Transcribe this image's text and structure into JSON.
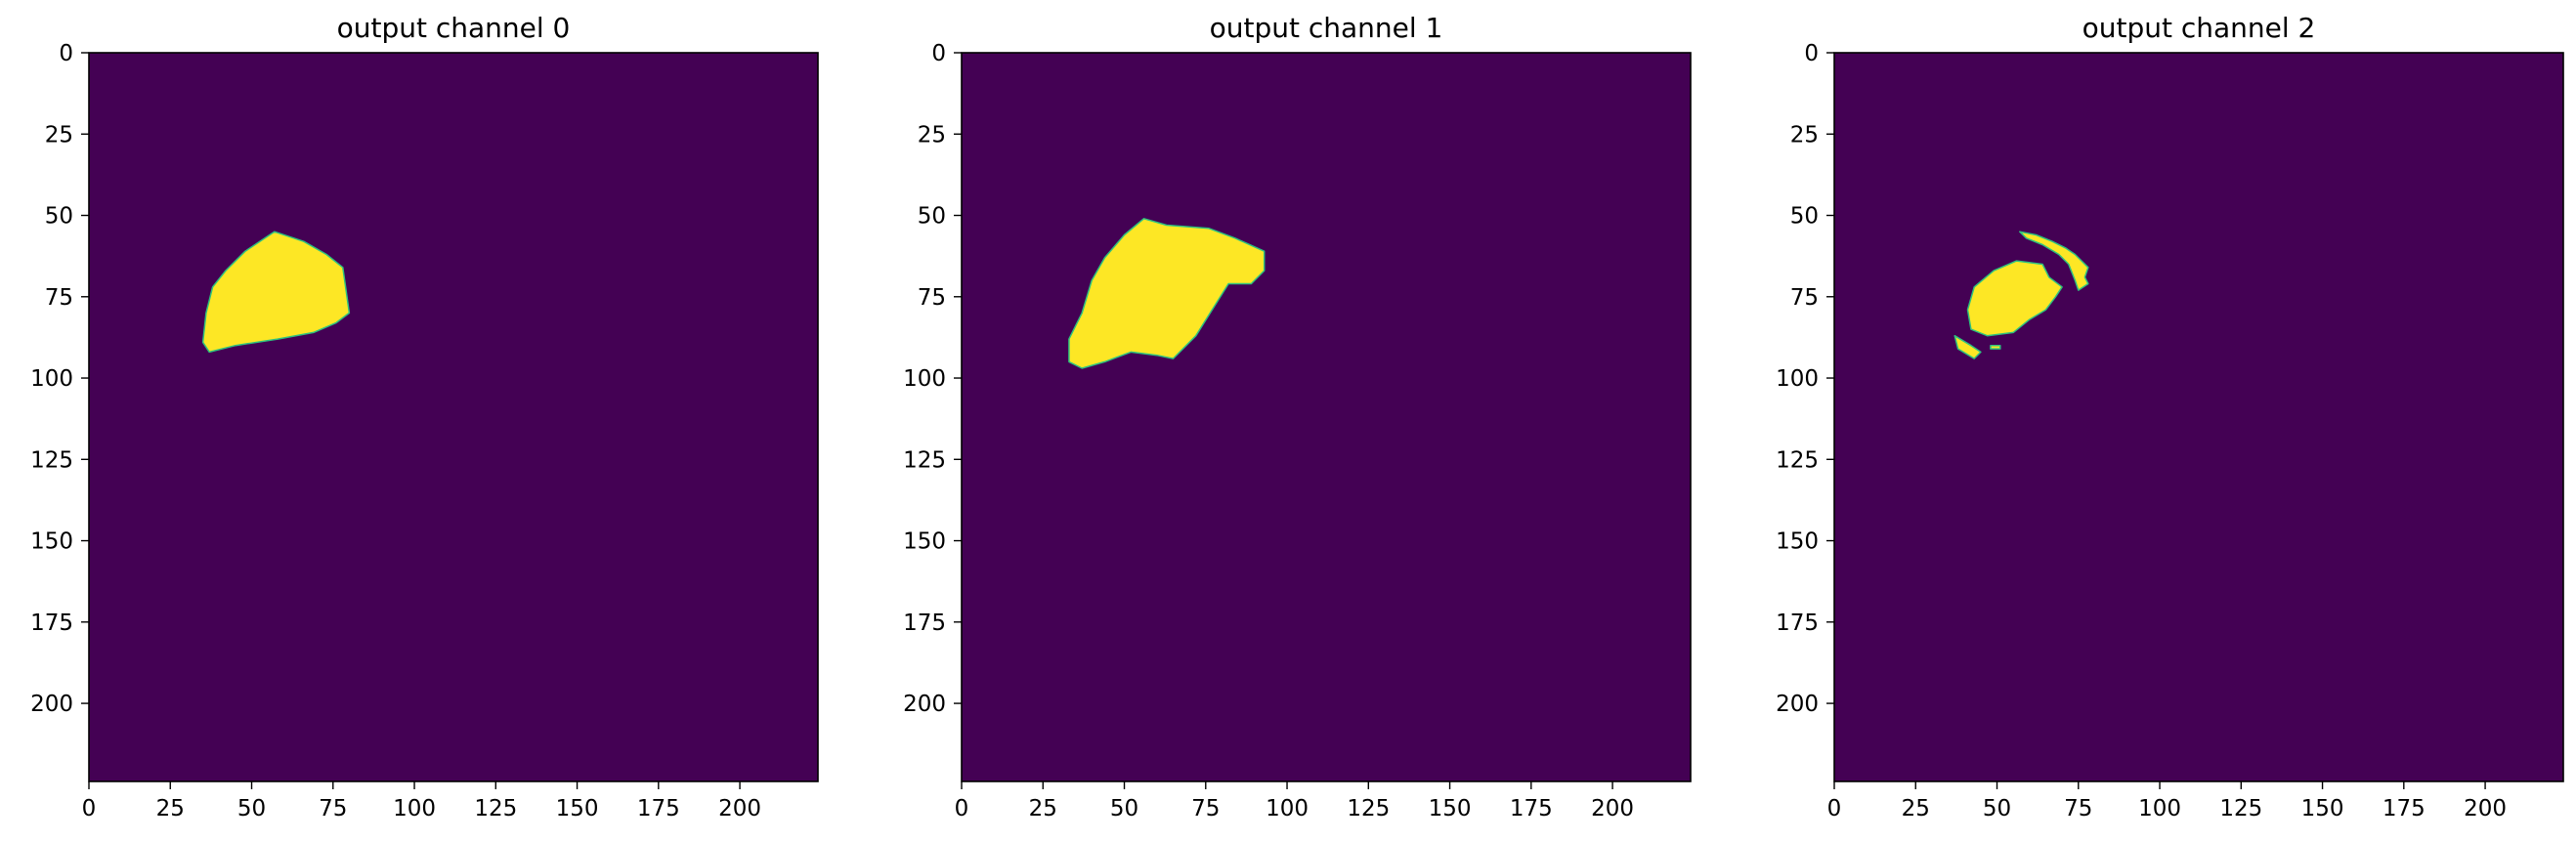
{
  "chart_data": [
    {
      "type": "heatmap",
      "title": "output channel 0",
      "xlabel": "",
      "ylabel": "",
      "xlim": [
        0,
        224
      ],
      "ylim": [
        224,
        0
      ],
      "xticks": [
        0,
        25,
        50,
        75,
        100,
        125,
        150,
        175,
        200
      ],
      "yticks": [
        0,
        25,
        50,
        75,
        100,
        125,
        150,
        175,
        200
      ],
      "grid": false,
      "colors": {
        "background": "#440154",
        "mask": "#fde725",
        "edge": "#2ec27e"
      },
      "values": {
        "background": 0,
        "mask": 1
      },
      "masks": [
        [
          [
            57,
            55
          ],
          [
            66,
            58
          ],
          [
            73,
            62
          ],
          [
            78,
            66
          ],
          [
            79,
            73
          ],
          [
            80,
            80
          ],
          [
            76,
            83
          ],
          [
            69,
            86
          ],
          [
            58,
            88
          ],
          [
            45,
            90
          ],
          [
            37,
            92
          ],
          [
            35,
            89
          ],
          [
            36,
            80
          ],
          [
            38,
            72
          ],
          [
            42,
            67
          ],
          [
            48,
            61
          ]
        ]
      ]
    },
    {
      "type": "heatmap",
      "title": "output channel 1",
      "xlabel": "",
      "ylabel": "",
      "xlim": [
        0,
        224
      ],
      "ylim": [
        224,
        0
      ],
      "xticks": [
        0,
        25,
        50,
        75,
        100,
        125,
        150,
        175,
        200
      ],
      "yticks": [
        0,
        25,
        50,
        75,
        100,
        125,
        150,
        175,
        200
      ],
      "grid": false,
      "colors": {
        "background": "#440154",
        "mask": "#fde725",
        "edge": "#2ec27e"
      },
      "values": {
        "background": 0,
        "mask": 1
      },
      "masks": [
        [
          [
            56,
            51
          ],
          [
            63,
            53
          ],
          [
            76,
            54
          ],
          [
            84,
            57
          ],
          [
            93,
            61
          ],
          [
            93,
            67
          ],
          [
            89,
            71
          ],
          [
            86,
            71
          ],
          [
            82,
            71
          ],
          [
            77,
            79
          ],
          [
            72,
            87
          ],
          [
            65,
            94
          ],
          [
            60,
            93
          ],
          [
            52,
            92
          ],
          [
            44,
            95
          ],
          [
            37,
            97
          ],
          [
            33,
            95
          ],
          [
            33,
            88
          ],
          [
            37,
            80
          ],
          [
            40,
            70
          ],
          [
            44,
            63
          ],
          [
            50,
            56
          ]
        ]
      ]
    },
    {
      "type": "heatmap",
      "title": "output channel 2",
      "xlabel": "",
      "ylabel": "",
      "xlim": [
        0,
        224
      ],
      "ylim": [
        224,
        0
      ],
      "xticks": [
        0,
        25,
        50,
        75,
        100,
        125,
        150,
        175,
        200
      ],
      "yticks": [
        0,
        25,
        50,
        75,
        100,
        125,
        150,
        175,
        200
      ],
      "grid": false,
      "colors": {
        "background": "#440154",
        "mask": "#fde725",
        "edge": "#2ec27e"
      },
      "values": {
        "background": 0,
        "mask": 1
      },
      "masks": [
        [
          [
            49,
            67
          ],
          [
            56,
            64
          ],
          [
            64,
            65
          ],
          [
            66,
            69
          ],
          [
            70,
            72
          ],
          [
            68,
            75
          ],
          [
            65,
            79
          ],
          [
            60,
            82
          ],
          [
            55,
            86
          ],
          [
            47,
            87
          ],
          [
            42,
            85
          ],
          [
            41,
            79
          ],
          [
            43,
            72
          ]
        ],
        [
          [
            57,
            55
          ],
          [
            62,
            56
          ],
          [
            67,
            58
          ],
          [
            71,
            60
          ],
          [
            74,
            62
          ],
          [
            76,
            64
          ],
          [
            78,
            66
          ],
          [
            77,
            69
          ],
          [
            78,
            71
          ],
          [
            75,
            73
          ],
          [
            74,
            70
          ],
          [
            72,
            65
          ],
          [
            69,
            62
          ],
          [
            64,
            59
          ],
          [
            59,
            57
          ]
        ],
        [
          [
            37,
            87
          ],
          [
            42,
            90
          ],
          [
            45,
            92
          ],
          [
            43,
            94
          ],
          [
            38,
            91
          ]
        ],
        [
          [
            48,
            90
          ],
          [
            51,
            90
          ],
          [
            51,
            91
          ],
          [
            48,
            91
          ]
        ]
      ]
    }
  ]
}
